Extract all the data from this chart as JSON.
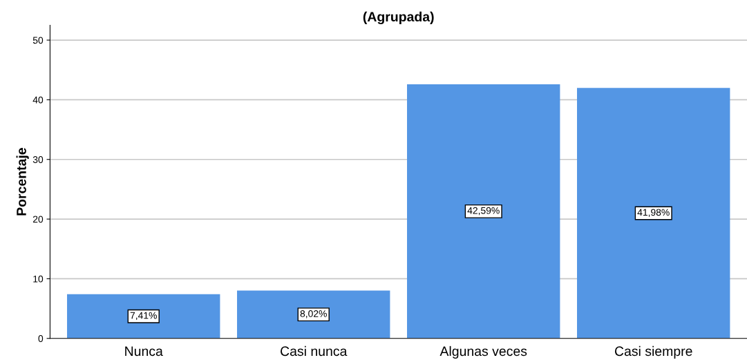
{
  "chart_data": {
    "type": "bar",
    "title": "(Agrupada)",
    "ylabel": "Porcentaje",
    "categories": [
      "Nunca",
      "Casi nunca",
      "Algunas veces",
      "Casi siempre"
    ],
    "values": [
      7.41,
      8.02,
      42.59,
      41.98
    ],
    "color": "#5496e4",
    "value_labels": [
      "7,41%",
      "8,02%",
      "42,59%",
      "41,98%"
    ],
    "ylim": [
      0,
      52.5
    ],
    "yticks": [
      0,
      10,
      20,
      30,
      40,
      50
    ],
    "grid": "y"
  }
}
